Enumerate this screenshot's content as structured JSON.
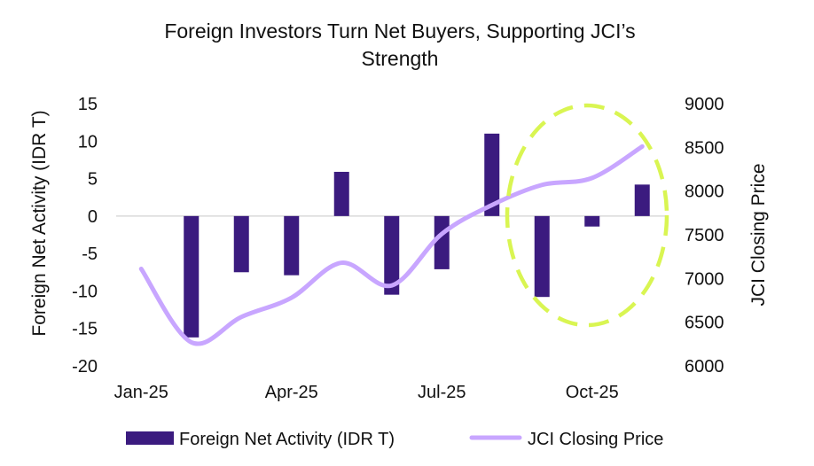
{
  "chart_data": {
    "type": "bar+line",
    "title": [
      "Foreign Investors Turn Net Buyers, Supporting JCI’s",
      "Strength"
    ],
    "categories": [
      "Jan-25",
      "Feb-25",
      "Mar-25",
      "Apr-25",
      "May-25",
      "Jun-25",
      "Jul-25",
      "Aug-25",
      "Sep-25",
      "Oct-25",
      "Nov-25"
    ],
    "x_tick_labels": [
      "Jan-25",
      "Apr-25",
      "Jul-25",
      "Oct-25"
    ],
    "ylabel_left": "Foreign Net Activity (IDR T)",
    "ylabel_right": "JCI Closing Price",
    "ylim_left": [
      -20,
      15
    ],
    "yticks_left": [
      "15",
      "10",
      "5",
      "0",
      "-5",
      "-10",
      "-15",
      "-20"
    ],
    "ylim_right": [
      6000,
      9000
    ],
    "yticks_right": [
      "9000",
      "8500",
      "8000",
      "7500",
      "7000",
      "6500",
      "6000"
    ],
    "series": [
      {
        "name": "Foreign Net Activity (IDR T)",
        "kind": "bar",
        "axis": "left",
        "color": "#3b1b7f",
        "values": [
          null,
          -16.2,
          -7.5,
          -7.9,
          5.9,
          -10.5,
          -7.1,
          11.0,
          -10.8,
          -1.4,
          4.2
        ]
      },
      {
        "name": "JCI Closing Price",
        "kind": "line",
        "axis": "right",
        "color": "#c8a6ff",
        "values": [
          7110,
          6270,
          6560,
          6780,
          7180,
          6920,
          7510,
          7840,
          8070,
          8150,
          8510
        ]
      }
    ],
    "annotation": {
      "shape": "dashed-ellipse",
      "color": "#d9f552",
      "highlights": [
        "Sep-25",
        "Oct-25",
        "Nov-25"
      ]
    },
    "grid": false,
    "legend_position": "bottom"
  }
}
